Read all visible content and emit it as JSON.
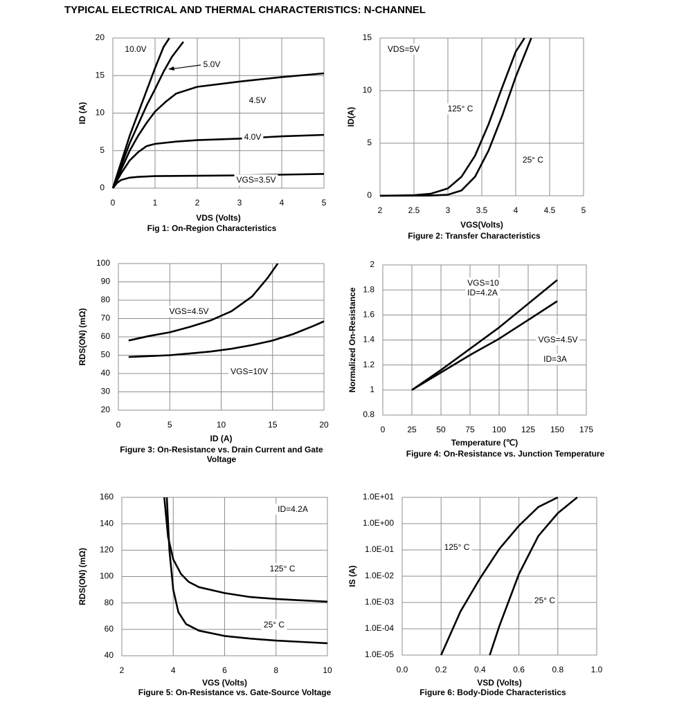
{
  "title": "TYPICAL ELECTRICAL AND THERMAL CHARACTERISTICS: N-CHANNEL",
  "chart_data": [
    {
      "type": "line",
      "title": "Fig 1: On-Region Characteristics",
      "xlabel": "VDS (Volts)",
      "ylabel": "ID (A)",
      "xlim": [
        0,
        5
      ],
      "ylim": [
        0,
        20
      ],
      "xticks": [
        0,
        1,
        2,
        3,
        4,
        5
      ],
      "yticks": [
        0,
        5,
        10,
        15,
        20
      ],
      "grid": true,
      "series": [
        {
          "name": "10.0V",
          "color": "#000000",
          "x": [
            0,
            0.2,
            0.4,
            0.6,
            0.8,
            1.0,
            1.2,
            1.34
          ],
          "values": [
            0,
            3.5,
            7,
            10,
            13,
            16,
            18.8,
            20
          ]
        },
        {
          "name": "5.0V",
          "color": "#000000",
          "x": [
            0,
            0.2,
            0.4,
            0.6,
            0.8,
            1.0,
            1.2,
            1.4,
            1.67
          ],
          "values": [
            0,
            3,
            6,
            8.5,
            11,
            13.2,
            15.5,
            17.5,
            19.5
          ]
        },
        {
          "name": "4.5V",
          "color": "#000000",
          "x": [
            0,
            0.2,
            0.4,
            0.6,
            0.8,
            1,
            1.25,
            1.5,
            2,
            3,
            4,
            5
          ],
          "values": [
            0,
            2.5,
            5,
            7,
            8.7,
            10.2,
            11.5,
            12.6,
            13.5,
            14.2,
            14.8,
            15.3
          ]
        },
        {
          "name": "4.0V",
          "color": "#000000",
          "x": [
            0,
            0.2,
            0.4,
            0.6,
            0.8,
            1,
            1.5,
            2,
            3,
            4,
            5
          ],
          "values": [
            0,
            2,
            3.7,
            4.8,
            5.6,
            5.9,
            6.2,
            6.4,
            6.6,
            6.9,
            7.1
          ]
        },
        {
          "name": "VGS=3.5V",
          "color": "#000000",
          "x": [
            0,
            0.1,
            0.2,
            0.4,
            0.6,
            1,
            2,
            3,
            4,
            5
          ],
          "values": [
            0,
            0.7,
            1.1,
            1.4,
            1.5,
            1.6,
            1.65,
            1.7,
            1.8,
            1.9
          ]
        }
      ]
    },
    {
      "type": "line",
      "title": "Figure 2: Transfer Characteristics",
      "xlabel": "VGS(Volts)",
      "ylabel": "ID(A)",
      "xlim": [
        2,
        5
      ],
      "ylim": [
        0,
        15
      ],
      "xticks": [
        2,
        2.5,
        3,
        3.5,
        4,
        4.5,
        5
      ],
      "yticks": [
        0,
        5,
        10,
        15
      ],
      "grid": true,
      "annotations": [
        "VDS=5V"
      ],
      "series": [
        {
          "name": "125° C",
          "color": "#000000",
          "x": [
            2,
            2.5,
            2.75,
            3,
            3.2,
            3.4,
            3.6,
            3.8,
            4.0,
            4.13
          ],
          "values": [
            0,
            0.05,
            0.2,
            0.7,
            1.8,
            3.8,
            6.8,
            10.3,
            13.7,
            15
          ]
        },
        {
          "name": "25° C",
          "color": "#000000",
          "x": [
            2,
            2.75,
            3,
            3.2,
            3.4,
            3.6,
            3.8,
            4.0,
            4.23
          ],
          "values": [
            0,
            0.02,
            0.1,
            0.5,
            1.8,
            4.3,
            7.6,
            11.3,
            15
          ]
        }
      ]
    },
    {
      "type": "line",
      "title": "Figure 3: On-Resistance vs. Drain Current and Gate Voltage",
      "xlabel": "ID (A)",
      "ylabel": "RDS(ON) (mΩ)",
      "xlim": [
        0,
        20
      ],
      "ylim": [
        20,
        100
      ],
      "xticks": [
        0,
        5,
        10,
        15,
        20
      ],
      "yticks": [
        20,
        30,
        40,
        50,
        60,
        70,
        80,
        90,
        100
      ],
      "grid": true,
      "series": [
        {
          "name": "VGS=4.5V",
          "color": "#000000",
          "x": [
            1,
            3,
            5,
            7,
            9,
            11,
            13,
            14.5,
            15.5
          ],
          "values": [
            58,
            60.5,
            62.5,
            65.5,
            69,
            74,
            82,
            92,
            100
          ]
        },
        {
          "name": "VGS=10V",
          "color": "#000000",
          "x": [
            1,
            3,
            5,
            7,
            9,
            11,
            13,
            15,
            17,
            19,
            20
          ],
          "values": [
            49,
            49.5,
            50,
            51,
            52,
            53.5,
            55.5,
            58,
            61.5,
            66,
            68.5
          ]
        }
      ]
    },
    {
      "type": "line",
      "title": "Figure 4: On-Resistance vs. Junction Temperature",
      "xlabel": "Temperature (℃)",
      "ylabel": "Normalized On-Resistance",
      "xlim": [
        0,
        175
      ],
      "ylim": [
        0.8,
        2
      ],
      "xticks": [
        0,
        25,
        50,
        75,
        100,
        125,
        150,
        175
      ],
      "yticks": [
        0.8,
        1,
        1.2,
        1.4,
        1.6,
        1.8,
        2
      ],
      "grid": true,
      "annotations": [
        "ID=4.2A",
        "ID=3A"
      ],
      "series": [
        {
          "name": "VGS=10",
          "color": "#000000",
          "x": [
            25,
            50,
            75,
            100,
            125,
            150
          ],
          "values": [
            1,
            1.16,
            1.33,
            1.5,
            1.69,
            1.88
          ]
        },
        {
          "name": "VGS=4.5V",
          "color": "#000000",
          "x": [
            25,
            50,
            75,
            100,
            125,
            150
          ],
          "values": [
            1,
            1.14,
            1.28,
            1.41,
            1.56,
            1.71
          ]
        }
      ]
    },
    {
      "type": "line",
      "title": "Figure 5: On-Resistance vs. Gate-Source Voltage",
      "xlabel": "VGS (Volts)",
      "ylabel": "RDS(ON) (mΩ)",
      "xlim": [
        2,
        10
      ],
      "ylim": [
        40,
        160
      ],
      "xticks": [
        2,
        4,
        6,
        8,
        10
      ],
      "yticks": [
        40,
        60,
        80,
        100,
        120,
        140,
        160
      ],
      "grid": true,
      "annotations": [
        "ID=4.2A"
      ],
      "series": [
        {
          "name": "125° C",
          "color": "#000000",
          "x": [
            3.65,
            3.8,
            4,
            4.3,
            4.6,
            5,
            6,
            7,
            8,
            9,
            10
          ],
          "values": [
            160,
            130,
            113,
            102,
            96,
            92,
            87.5,
            84.5,
            83,
            82,
            81
          ]
        },
        {
          "name": "25° C",
          "color": "#000000",
          "x": [
            3.75,
            3.85,
            4,
            4.2,
            4.5,
            5,
            6,
            7,
            8,
            9,
            10
          ],
          "values": [
            160,
            120,
            90,
            73,
            64,
            59,
            55,
            53,
            51.5,
            50.5,
            49.5
          ]
        }
      ]
    },
    {
      "type": "line",
      "title": "Figure 6: Body-Diode Characteristics",
      "xlabel": "VSD (Volts)",
      "ylabel": "IS (A)",
      "xlim": [
        0,
        1
      ],
      "ylim": [
        1e-05,
        10
      ],
      "log": true,
      "xticks": [
        {
          "value": 0,
          "label": "0.0"
        },
        0.2,
        0.4,
        0.6,
        0.8,
        {
          "value": 1,
          "label": "1.0"
        }
      ],
      "yticks": [
        {
          "value": 1e-05,
          "label": "1.0E-05"
        },
        {
          "value": 0.0001,
          "label": "1.0E-04"
        },
        {
          "value": 0.001,
          "label": "1.0E-03"
        },
        {
          "value": 0.01,
          "label": "1.0E-02"
        },
        {
          "value": 0.1,
          "label": "1.0E-01"
        },
        {
          "value": 1,
          "label": "1.0E+00"
        },
        {
          "value": 10,
          "label": "1.0E+01"
        }
      ],
      "grid": true,
      "series": [
        {
          "name": "125° C",
          "color": "#000000",
          "x": [
            0.2,
            0.3,
            0.4,
            0.5,
            0.6,
            0.7,
            0.8
          ],
          "values": [
            1e-05,
            0.00046,
            0.0083,
            0.11,
            0.83,
            4.3,
            10
          ]
        },
        {
          "name": "25° C",
          "color": "#000000",
          "x": [
            0.45,
            0.5,
            0.6,
            0.7,
            0.8,
            0.9
          ],
          "values": [
            1e-05,
            0.00013,
            0.012,
            0.34,
            2.5,
            10
          ]
        }
      ]
    }
  ]
}
